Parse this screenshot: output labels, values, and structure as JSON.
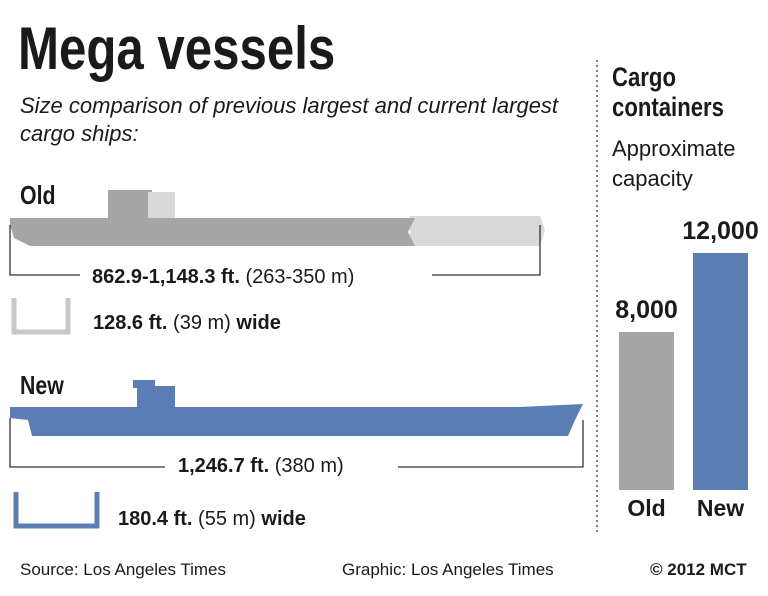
{
  "header": {
    "title": "Mega vessels",
    "subtitle": "Size comparison of previous largest and current largest cargo ships:"
  },
  "ships": [
    {
      "label": "Old",
      "length_bold": "862.9-1,148.3 ft.",
      "length_rest": "(263-350 m)",
      "width_bold": "128.6 ft.",
      "width_mid": "(39 m)",
      "width_end": "wide"
    },
    {
      "label": "New",
      "length_bold": "1,246.7 ft.",
      "length_rest": "(380 m)",
      "width_bold": "180.4 ft.",
      "width_mid": "(55 m)",
      "width_end": "wide"
    }
  ],
  "chart_data": {
    "type": "bar",
    "title": "Cargo containers",
    "subtitle": "Approximate capacity",
    "categories": [
      "Old",
      "New"
    ],
    "values": [
      8000,
      12000
    ],
    "value_labels": [
      "8,000",
      "12,000"
    ],
    "colors": [
      "#a5a5a5",
      "#5a7db4"
    ]
  },
  "footer": {
    "source": "Source: Los Angeles Times",
    "graphic": "Graphic: Los Angeles Times",
    "copyright": "© 2012 MCT"
  }
}
